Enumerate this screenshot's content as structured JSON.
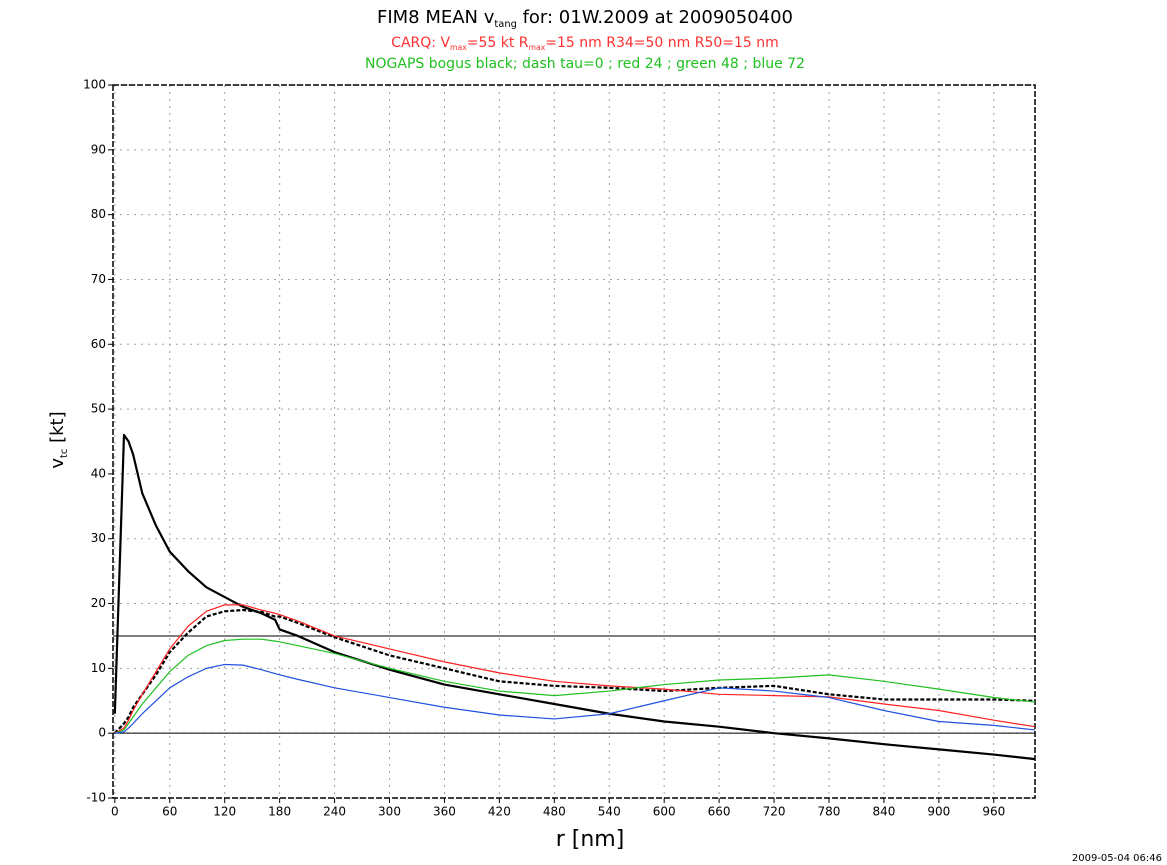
{
  "chart_data": {
    "type": "line",
    "title": [
      "FIM8   MEAN   v",
      "tang",
      " for: 01W.2009 at 2009050400"
    ],
    "subtitle": [
      "CARQ:   V",
      "max",
      "=55 kt   R",
      "max",
      "=15 nm   R34=50 nm   R50=15 nm"
    ],
    "subtitle2": "NOGAPS bogus black; dash tau=0 ; red 24 ; green 48 ; blue 72",
    "ylabel": [
      "v",
      "tc",
      " [kt]"
    ],
    "xlabel": "r [nm]",
    "timestamp": "2009-05-04 06:46",
    "x": [
      0,
      10,
      15,
      20,
      30,
      45,
      60,
      80,
      100,
      120,
      140,
      160,
      175,
      180,
      200,
      240,
      300,
      360,
      420,
      480,
      540,
      600,
      660,
      720,
      780,
      840,
      900,
      960,
      1005
    ],
    "series": [
      {
        "color": "#000000",
        "width": 2.2,
        "dash": false,
        "values": [
          3,
          46,
          45,
          43,
          37,
          32,
          28,
          25,
          22.5,
          21,
          19.5,
          18.5,
          17.5,
          16,
          15,
          12.5,
          9.8,
          7.5,
          6,
          4.5,
          3,
          1.8,
          1,
          0,
          -0.8,
          -1.7,
          -2.5,
          -3.3,
          -4
        ]
      },
      {
        "color": "#000000",
        "width": 2.2,
        "dash": true,
        "values": [
          0,
          1.5,
          2.5,
          4,
          6,
          9,
          12.5,
          15.5,
          18,
          18.8,
          19,
          18.7,
          18,
          18,
          17,
          14.8,
          12,
          10,
          8,
          7.3,
          7,
          6.5,
          7,
          7.3,
          6,
          5.2,
          5.2,
          5.2,
          5
        ]
      },
      {
        "color": "#ff2020",
        "width": 1.2,
        "dash": false,
        "values": [
          0,
          0.8,
          2,
          3.5,
          6,
          9.5,
          13,
          16.5,
          18.8,
          19.8,
          19.8,
          19,
          18.5,
          18.3,
          17.3,
          15,
          13,
          11,
          9.3,
          8,
          7.3,
          6.8,
          6,
          5.8,
          5.6,
          4.5,
          3.5,
          2,
          1
        ]
      },
      {
        "color": "#20c020",
        "width": 1.2,
        "dash": false,
        "values": [
          0,
          0.5,
          1.5,
          2.5,
          4.5,
          7,
          9.5,
          12,
          13.5,
          14.3,
          14.5,
          14.5,
          14.2,
          14.1,
          13.5,
          12.3,
          10,
          8,
          6.5,
          5.8,
          6.5,
          7.5,
          8.2,
          8.5,
          9,
          8,
          6.8,
          5.5,
          4.8
        ]
      },
      {
        "color": "#2050e0",
        "width": 1.2,
        "dash": false,
        "values": [
          0,
          0.2,
          0.8,
          1.5,
          3,
          5,
          7,
          8.7,
          10,
          10.6,
          10.5,
          9.8,
          9.2,
          9,
          8.3,
          7,
          5.5,
          4,
          2.8,
          2.2,
          3,
          5,
          7,
          6.5,
          5.5,
          3.5,
          1.8,
          1.2,
          0.5
        ]
      }
    ],
    "reference_lines": [
      15,
      0
    ],
    "xlim": [
      -2,
      1005
    ],
    "ylim": [
      -10,
      100
    ],
    "xticks": [
      0,
      60,
      120,
      180,
      240,
      300,
      360,
      420,
      480,
      540,
      600,
      660,
      720,
      780,
      840,
      900,
      960
    ],
    "yticks": [
      -10,
      0,
      10,
      20,
      30,
      40,
      50,
      60,
      70,
      80,
      90,
      100
    ],
    "grid": true,
    "title_color": "#000000",
    "subtitle_color": "#ff3030",
    "subtitle2_color": "#20c020"
  }
}
